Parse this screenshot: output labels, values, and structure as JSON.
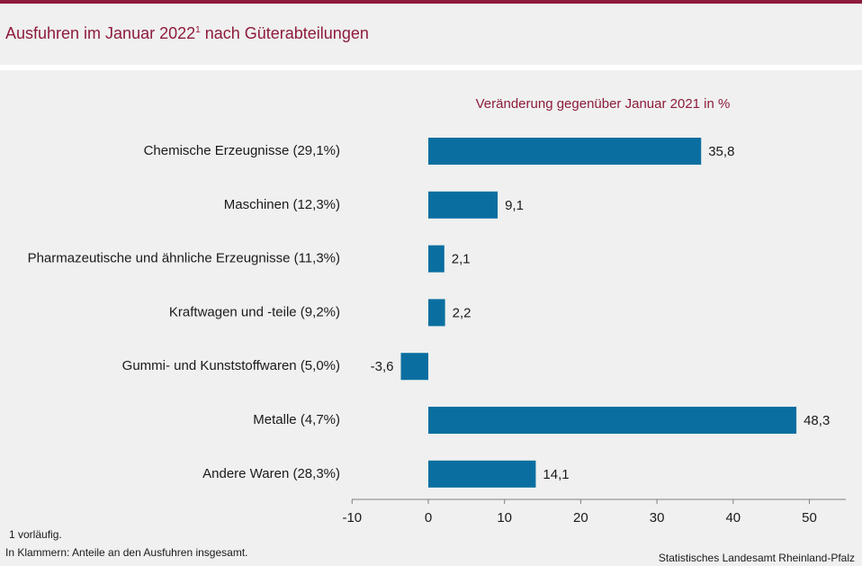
{
  "chart_data": {
    "type": "bar",
    "orientation": "horizontal",
    "title": "Ausfuhren im Januar 2022",
    "title_footnote_mark": "1",
    "title_suffix": "nach Güterabteilungen",
    "subtitle": "Veränderung gegenüber Januar 2021 in %",
    "categories": [
      "Chemische Erzeugnisse (29,1%)",
      "Maschinen (12,3%)",
      "Pharmazeutische und ähnliche Erzeugnisse (11,3%)",
      "Kraftwagen und -teile (9,2%)",
      "Gummi- und Kunststoffwaren (5,0%)",
      "Metalle (4,7%)",
      "Andere Waren (28,3%)"
    ],
    "values": [
      35.8,
      9.1,
      2.1,
      2.2,
      -3.6,
      48.3,
      14.1
    ],
    "value_labels": [
      "35,8",
      "9,1",
      "2,1",
      "2,2",
      "-3,6",
      "48,3",
      "14,1"
    ],
    "xlim": [
      -10,
      55
    ],
    "xticks": [
      -10,
      0,
      10,
      20,
      30,
      40,
      50
    ],
    "xtick_labels": [
      "-10",
      "0",
      "10",
      "20",
      "30",
      "40",
      "50"
    ],
    "bar_color": "#0a6fa0",
    "grid": false
  },
  "footnotes": {
    "note1": "1 vorläufig.",
    "note2": "In Klammern: Anteile an den Ausfuhren insgesamt."
  },
  "source": "Statistisches Landesamt Rheinland-Pfalz",
  "colors": {
    "accent": "#8e1b3c",
    "background": "#eff0ef"
  }
}
